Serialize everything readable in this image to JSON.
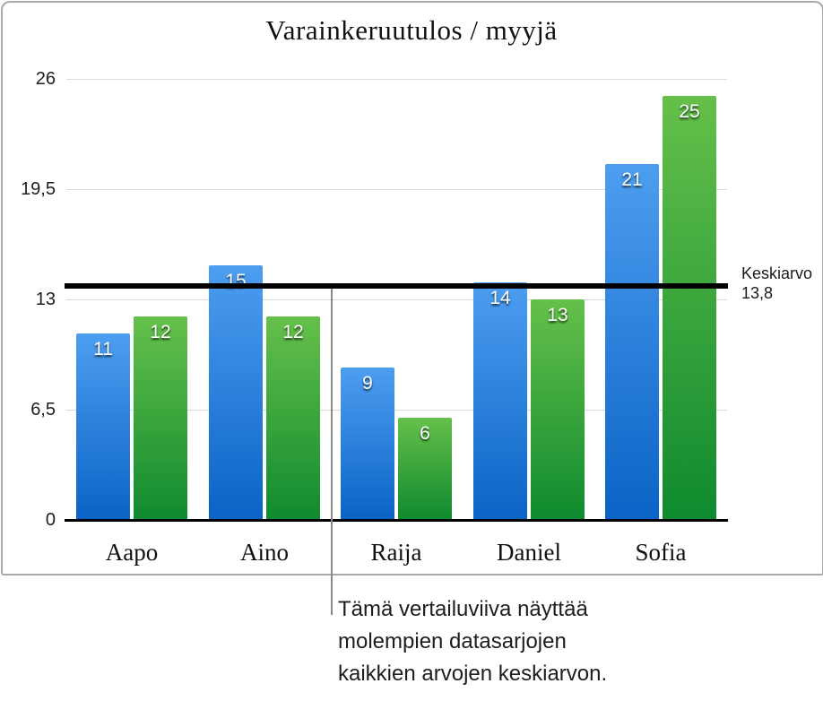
{
  "chart_data": {
    "type": "bar",
    "title": "Varainkeruutulos / myyjä",
    "categories": [
      "Aapo",
      "Aino",
      "Raija",
      "Daniel",
      "Sofia"
    ],
    "series": [
      {
        "name": "blue-series",
        "color_top": "#4d9ef0",
        "color_bottom": "#0a63c5",
        "values": [
          11,
          15,
          9,
          14,
          21
        ]
      },
      {
        "name": "green-series",
        "color_top": "#65c04a",
        "color_bottom": "#0f8a2f",
        "values": [
          12,
          12,
          6,
          13,
          25
        ]
      }
    ],
    "y_axis": {
      "min": 0,
      "max": 26,
      "tick_values": [
        0,
        6.5,
        13,
        19.5,
        26
      ],
      "tick_labels": [
        "0",
        "6,5",
        "13",
        "19,5",
        "26"
      ],
      "grid": true
    },
    "xlabel": "",
    "ylabel": "",
    "legend": "none",
    "reference_line": {
      "value": 13.8,
      "color": "#000000",
      "label_lines": [
        "Keskiarvo",
        "13,8"
      ]
    }
  },
  "callout": {
    "lines": [
      "Tämä vertailuviiva näyttää",
      "molempien datasarjojen",
      "kaikkien arvojen keskiarvon."
    ]
  }
}
